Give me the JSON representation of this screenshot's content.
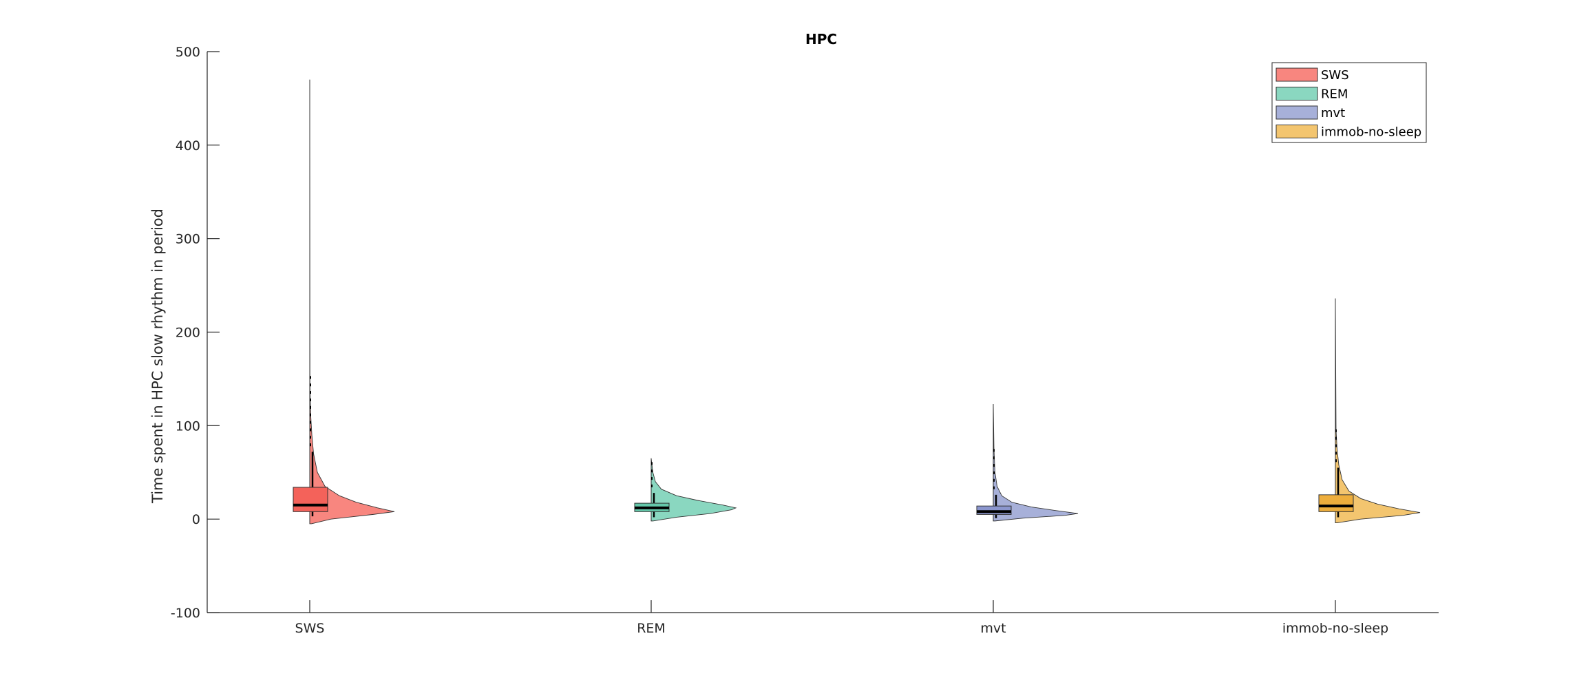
{
  "chart_data": {
    "type": "violin",
    "title": "HPC",
    "xlabel": "",
    "ylabel": "Time spent in HPC slow rhythm in period",
    "ylim": [
      -100,
      500
    ],
    "yticks": [
      -100,
      0,
      100,
      200,
      300,
      400,
      500
    ],
    "categories": [
      "SWS",
      "REM",
      "mvt",
      "immob-no-sleep"
    ],
    "legend": {
      "position": "top-right",
      "entries": [
        "SWS",
        "REM",
        "mvt",
        "immob-no-sleep"
      ]
    },
    "grid": false,
    "series": [
      {
        "name": "SWS",
        "color": "#f8867f",
        "box_color": "#f4625a",
        "max": 470,
        "min": -5,
        "q1": 8,
        "median": 15,
        "q3": 34,
        "whisker_low": 3,
        "whisker_high": 72,
        "outlier_top": 150,
        "density_max_at": 8,
        "density": [
          [
            -5,
            0.02
          ],
          [
            0,
            0.25
          ],
          [
            5,
            0.75
          ],
          [
            8,
            1.0
          ],
          [
            12,
            0.8
          ],
          [
            18,
            0.55
          ],
          [
            25,
            0.35
          ],
          [
            35,
            0.18
          ],
          [
            50,
            0.09
          ],
          [
            70,
            0.045
          ],
          [
            90,
            0.025
          ],
          [
            110,
            0.012
          ],
          [
            130,
            0.005
          ],
          [
            150,
            0.002
          ],
          [
            470,
            0
          ]
        ]
      },
      {
        "name": "REM",
        "color": "#8ad7c0",
        "box_color": "#64c8aa",
        "max": 65,
        "min": -2,
        "q1": 8,
        "median": 12,
        "q3": 17,
        "whisker_low": 2,
        "whisker_high": 28,
        "outlier_top": 65,
        "density_max_at": 12,
        "density": [
          [
            -2,
            0.02
          ],
          [
            2,
            0.3
          ],
          [
            6,
            0.7
          ],
          [
            10,
            0.95
          ],
          [
            12,
            1.0
          ],
          [
            15,
            0.85
          ],
          [
            20,
            0.55
          ],
          [
            25,
            0.3
          ],
          [
            32,
            0.12
          ],
          [
            40,
            0.05
          ],
          [
            50,
            0.02
          ],
          [
            65,
            0
          ]
        ]
      },
      {
        "name": "mvt",
        "color": "#a7b0d9",
        "box_color": "#8b96ce",
        "max": 123,
        "min": -2,
        "q1": 5,
        "median": 8,
        "q3": 14,
        "whisker_low": 1,
        "whisker_high": 26,
        "outlier_top": 75,
        "density_max_at": 6,
        "density": [
          [
            -2,
            0.02
          ],
          [
            1,
            0.35
          ],
          [
            4,
            0.85
          ],
          [
            6,
            1.0
          ],
          [
            9,
            0.75
          ],
          [
            13,
            0.45
          ],
          [
            18,
            0.22
          ],
          [
            25,
            0.1
          ],
          [
            35,
            0.045
          ],
          [
            50,
            0.02
          ],
          [
            75,
            0.008
          ],
          [
            123,
            0
          ]
        ]
      },
      {
        "name": "immob-no-sleep",
        "color": "#f3c56f",
        "box_color": "#eeae3c",
        "max": 236,
        "min": -4,
        "q1": 8,
        "median": 14,
        "q3": 26,
        "whisker_low": 2,
        "whisker_high": 55,
        "outlier_top": 95,
        "density_max_at": 7,
        "density": [
          [
            -4,
            0.02
          ],
          [
            0,
            0.3
          ],
          [
            4,
            0.8
          ],
          [
            7,
            1.0
          ],
          [
            11,
            0.75
          ],
          [
            16,
            0.5
          ],
          [
            22,
            0.3
          ],
          [
            30,
            0.16
          ],
          [
            42,
            0.08
          ],
          [
            58,
            0.04
          ],
          [
            75,
            0.02
          ],
          [
            95,
            0.008
          ],
          [
            236,
            0
          ]
        ]
      }
    ]
  }
}
